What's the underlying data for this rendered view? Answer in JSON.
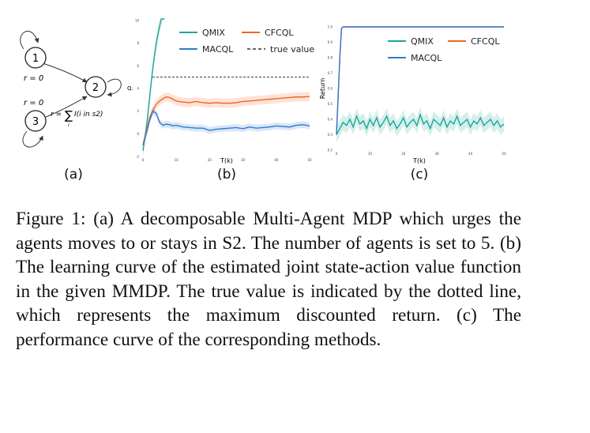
{
  "panel_a": {
    "label": "(a)",
    "states": [
      "1",
      "2",
      "3"
    ],
    "reward_s1": "r = 0",
    "reward_s3": "r = 0",
    "reward_s2_prefix": "r =",
    "reward_s2_sum": "∑",
    "reward_s2_sub": "i",
    "reward_s2_expr": "I(i in s2)",
    "stray_mark": "Q."
  },
  "chart_data": [
    {
      "type": "line",
      "panel_label": "(b)",
      "title": "",
      "xlabel": "T(k)",
      "ylabel": "",
      "xlim": [
        0,
        50
      ],
      "ylim": [
        -2,
        10
      ],
      "xticks": [
        "0",
        "10",
        "20",
        "30",
        "40",
        "50"
      ],
      "yticks": [
        "-2",
        "0",
        "2",
        "4",
        "6",
        "8",
        "10"
      ],
      "legend_position": "top",
      "true_value": 5.0,
      "series": [
        {
          "name": "QMIX",
          "color": "#1aa898",
          "x": [
            0,
            0.5,
            1,
            1.5,
            2,
            2.5,
            3,
            3.5,
            4,
            4.5,
            5,
            5.5,
            6,
            6.5
          ],
          "y": [
            -1.5,
            -0.5,
            0.5,
            1.8,
            3.2,
            4.6,
            5.9,
            7.0,
            8.0,
            8.8,
            9.5,
            10.2,
            10.8,
            11.5
          ],
          "band": 0.6
        },
        {
          "name": "CFCQL",
          "color": "#f26522",
          "x": [
            0,
            1,
            2,
            3,
            4,
            5,
            6,
            7,
            8,
            9,
            10,
            12,
            14,
            16,
            18,
            20,
            22,
            24,
            26,
            28,
            30,
            32,
            34,
            36,
            38,
            40,
            42,
            44,
            46,
            48,
            50
          ],
          "y": [
            -1.0,
            0.2,
            1.4,
            2.1,
            2.6,
            2.9,
            3.1,
            3.25,
            3.2,
            3.05,
            2.9,
            2.8,
            2.75,
            2.85,
            2.75,
            2.7,
            2.75,
            2.7,
            2.7,
            2.75,
            2.85,
            2.9,
            2.95,
            3.0,
            3.05,
            3.1,
            3.15,
            3.2,
            3.25,
            3.25,
            3.3
          ],
          "band": 0.4
        },
        {
          "name": "MACQL",
          "color": "#2f7bd1",
          "x": [
            0,
            1,
            2,
            3,
            4,
            5,
            6,
            7,
            8,
            9,
            10,
            12,
            14,
            16,
            18,
            20,
            22,
            24,
            26,
            28,
            30,
            32,
            34,
            36,
            38,
            40,
            42,
            44,
            46,
            48,
            50
          ],
          "y": [
            -1.0,
            0.0,
            1.2,
            2.0,
            1.8,
            1.0,
            0.75,
            0.85,
            0.8,
            0.7,
            0.75,
            0.6,
            0.55,
            0.5,
            0.5,
            0.3,
            0.4,
            0.45,
            0.5,
            0.55,
            0.45,
            0.6,
            0.5,
            0.55,
            0.6,
            0.7,
            0.65,
            0.6,
            0.75,
            0.8,
            0.7
          ],
          "band": 0.3
        }
      ],
      "legend": [
        "QMIX",
        "CFCQL",
        "MACQL",
        "true value"
      ]
    },
    {
      "type": "line",
      "panel_label": "(c)",
      "title": "",
      "xlabel": "T(k)",
      "ylabel": "Return",
      "xlim": [
        0,
        50
      ],
      "ylim": [
        0.2,
        1.0
      ],
      "xticks": [
        "0",
        "10",
        "20",
        "30",
        "40",
        "50"
      ],
      "yticks": [
        "0.2",
        "0.3",
        "0.4",
        "0.5",
        "0.6",
        "0.7",
        "0.8",
        "0.9",
        "1.0"
      ],
      "legend_position": "top-right",
      "series": [
        {
          "name": "CFCQL",
          "color": "#f26522",
          "x": [
            0,
            0.5,
            1,
            1.5,
            2,
            3,
            10,
            20,
            30,
            40,
            50
          ],
          "y": [
            0.3,
            0.55,
            0.8,
            0.99,
            1.0,
            1.0,
            1.0,
            1.0,
            1.0,
            1.0,
            1.0
          ],
          "band": 0.0
        },
        {
          "name": "MACQL",
          "color": "#2f7bd1",
          "x": [
            0,
            0.5,
            1,
            1.5,
            2,
            3,
            10,
            20,
            30,
            40,
            50
          ],
          "y": [
            0.3,
            0.55,
            0.8,
            0.99,
            1.0,
            1.0,
            1.0,
            1.0,
            1.0,
            1.0,
            1.0
          ],
          "band": 0.0
        },
        {
          "name": "QMIX",
          "color": "#1aa898",
          "x": [
            0,
            1,
            2,
            3,
            4,
            5,
            6,
            7,
            8,
            9,
            10,
            11,
            12,
            13,
            14,
            15,
            16,
            17,
            18,
            19,
            20,
            21,
            22,
            23,
            24,
            25,
            26,
            27,
            28,
            29,
            30,
            31,
            32,
            33,
            34,
            35,
            36,
            37,
            38,
            39,
            40,
            41,
            42,
            43,
            44,
            45,
            46,
            47,
            48,
            49,
            50
          ],
          "y": [
            0.3,
            0.34,
            0.38,
            0.36,
            0.4,
            0.35,
            0.42,
            0.37,
            0.39,
            0.34,
            0.4,
            0.36,
            0.41,
            0.35,
            0.38,
            0.42,
            0.36,
            0.39,
            0.34,
            0.37,
            0.41,
            0.35,
            0.38,
            0.4,
            0.36,
            0.43,
            0.37,
            0.39,
            0.34,
            0.4,
            0.38,
            0.36,
            0.41,
            0.35,
            0.39,
            0.37,
            0.42,
            0.36,
            0.38,
            0.4,
            0.35,
            0.39,
            0.37,
            0.41,
            0.36,
            0.38,
            0.4,
            0.36,
            0.39,
            0.35,
            0.37
          ],
          "band": 0.05
        }
      ],
      "legend": [
        "QMIX",
        "CFCQL",
        "MACQL"
      ]
    }
  ],
  "caption": {
    "text": "Figure 1: (a) A decomposable Multi-Agent MDP which urges the agents moves to or stays in S2. The number of agents is set to 5. (b) The learning curve of the estimated joint state-action value function in the given MMDP. The true value is indicated by the dotted line, which represents the maximum discounted return. (c) The performance curve of the corresponding methods."
  }
}
